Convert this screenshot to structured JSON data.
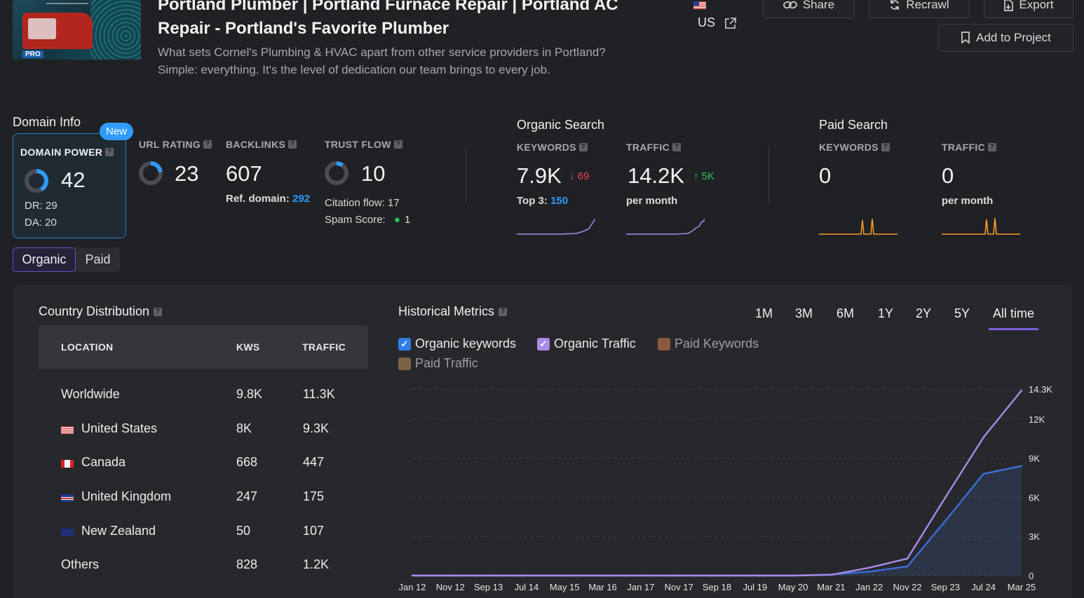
{
  "header": {
    "title_line1": "Portland Plumber | Portland Furnace Repair | Portland AC",
    "title_line2": "Repair  -  Portland's Favorite Plumber",
    "description": "What sets Cornel's Plumbing & HVAC apart from other service providers in Portland? Simple: everything. It's the level of dedication our team brings to every job.",
    "country": "US",
    "thumb_badge": "PRO",
    "buttons": {
      "share": "Share",
      "recrawl": "Recrawl",
      "export": "Export",
      "add_to_project": "Add to Project"
    }
  },
  "domain_info": {
    "heading": "Domain Info",
    "new_badge": "New",
    "domain_power_label": "DOMAIN POWER",
    "domain_power": "42",
    "dr": "DR: 29",
    "da": "DA: 20",
    "url_rating_label": "URL RATING",
    "url_rating": "23",
    "backlinks_label": "BACKLINKS",
    "backlinks": "607",
    "ref_domain_label": "Ref. domain:",
    "ref_domain": "292",
    "trust_flow_label": "TRUST FLOW",
    "trust_flow": "10",
    "citation_flow": "Citation flow: 17",
    "spam_score_label": "Spam Score:",
    "spam_score": "1"
  },
  "organic_search": {
    "heading": "Organic Search",
    "keywords_label": "KEYWORDS",
    "keywords": "7.9K",
    "keywords_change": "69",
    "top3_label": "Top 3:",
    "top3": "150",
    "traffic_label": "TRAFFIC",
    "traffic": "14.2K",
    "traffic_change": "5K",
    "traffic_unit": "per month"
  },
  "paid_search": {
    "heading": "Paid Search",
    "keywords_label": "KEYWORDS",
    "keywords": "0",
    "traffic_label": "TRAFFIC",
    "traffic": "0",
    "traffic_unit": "per month"
  },
  "toggle": {
    "organic": "Organic",
    "paid": "Paid"
  },
  "country_distribution": {
    "heading": "Country Distribution",
    "columns": [
      "LOCATION",
      "KWS",
      "TRAFFIC"
    ],
    "rows": [
      {
        "location": "Worldwide",
        "kws": "9.8K",
        "traffic": "11.3K"
      },
      {
        "location": "United States",
        "kws": "8K",
        "traffic": "9.3K"
      },
      {
        "location": "Canada",
        "kws": "668",
        "traffic": "447"
      },
      {
        "location": "United Kingdom",
        "kws": "247",
        "traffic": "175"
      },
      {
        "location": "New Zealand",
        "kws": "50",
        "traffic": "107"
      },
      {
        "location": "Others",
        "kws": "828",
        "traffic": "1.2K"
      }
    ]
  },
  "historical": {
    "heading": "Historical Metrics",
    "ranges": [
      "1M",
      "3M",
      "6M",
      "1Y",
      "2Y",
      "5Y",
      "All time"
    ],
    "active_range": "All time",
    "legend": [
      "Organic keywords",
      "Organic Traffic",
      "Paid Keywords",
      "Paid Traffic"
    ]
  },
  "colors": {
    "organic_keywords": "#3b6fd8",
    "organic_traffic": "#a98be8",
    "paid_keywords": "#8a5a3c",
    "paid_traffic": "#7a6445",
    "accent": "#2f9bff"
  },
  "chart_data": {
    "type": "line",
    "x": [
      "Jan 12",
      "Nov 12",
      "Sep 13",
      "Jul 14",
      "May 15",
      "Mar 16",
      "Jan 17",
      "Nov 17",
      "Sep 18",
      "Jul 19",
      "May 20",
      "Mar 21",
      "Jan 22",
      "Nov 22",
      "Sep 23",
      "Jul 24",
      "Mar 25"
    ],
    "y_ticks": [
      "0",
      "3K",
      "6K",
      "9K",
      "12K",
      "14.3K"
    ],
    "ylim": [
      0,
      14300
    ],
    "grid": true,
    "series": [
      {
        "name": "Organic keywords",
        "values": [
          0,
          0,
          0,
          0,
          0,
          0,
          0,
          0,
          0,
          0,
          0,
          80,
          300,
          700,
          4200,
          7800,
          8400
        ]
      },
      {
        "name": "Organic Traffic",
        "values": [
          0,
          0,
          0,
          0,
          0,
          0,
          0,
          0,
          0,
          0,
          0,
          60,
          600,
          1300,
          6000,
          10600,
          14200
        ]
      }
    ]
  }
}
